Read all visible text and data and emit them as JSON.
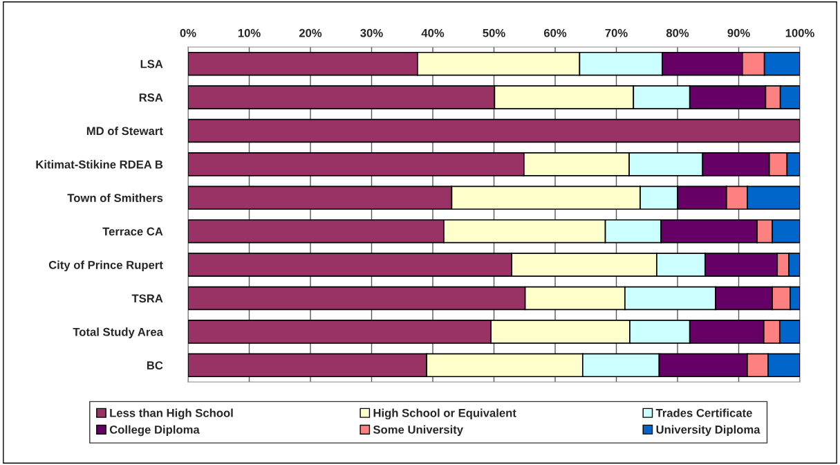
{
  "chart_data": {
    "type": "bar",
    "orientation": "horizontal",
    "stacked": true,
    "categories": [
      "LSA",
      "RSA",
      "MD of Stewart",
      "Kitimat-Stikine RDEA B",
      "Town of Smithers",
      "Terrace CA",
      "City of Prince Rupert",
      "TSRA",
      "Total Study Area",
      "BC"
    ],
    "series": [
      {
        "name": "Less than High School",
        "color": "#993366",
        "values": [
          37.5,
          50.1,
          100,
          54.9,
          43.1,
          41.8,
          52.9,
          55.1,
          49.5,
          39.0
        ]
      },
      {
        "name": "High School or Equivalent",
        "color": "#ffffcc",
        "values": [
          26.5,
          22.7,
          null,
          17.2,
          30.8,
          26.4,
          23.7,
          16.3,
          22.7,
          25.5
        ]
      },
      {
        "name": "Trades Certificate",
        "color": "#ccffff",
        "values": [
          13.5,
          9.2,
          null,
          12.0,
          6.1,
          9.1,
          7.9,
          14.8,
          9.8,
          12.5
        ]
      },
      {
        "name": "College Diploma",
        "color": "#660066",
        "values": [
          13.1,
          12.4,
          null,
          10.9,
          8.0,
          15.7,
          11.8,
          9.3,
          12.1,
          14.4
        ]
      },
      {
        "name": "Some University",
        "color": "#ff8080",
        "values": [
          3.6,
          2.4,
          null,
          2.9,
          3.4,
          2.5,
          1.9,
          2.9,
          2.6,
          3.4
        ]
      },
      {
        "name": "University Diploma",
        "color": "#0066cc",
        "values": [
          5.8,
          3.2,
          null,
          2.1,
          8.6,
          4.5,
          1.8,
          1.6,
          3.3,
          5.2
        ]
      }
    ],
    "xlim": [
      0,
      100
    ],
    "xticks": [
      {
        "value": 0,
        "label": "0%"
      },
      {
        "value": 10,
        "label": "10%"
      },
      {
        "value": 20,
        "label": "20%"
      },
      {
        "value": 30,
        "label": "30%"
      },
      {
        "value": 40,
        "label": "40%"
      },
      {
        "value": 50,
        "label": "50%"
      },
      {
        "value": 60,
        "label": "60%"
      },
      {
        "value": 70,
        "label": "70%"
      },
      {
        "value": 80,
        "label": "80%"
      },
      {
        "value": 90,
        "label": "90%"
      },
      {
        "value": 100,
        "label": "100%"
      }
    ],
    "grid": "x",
    "legend": "bottom"
  }
}
